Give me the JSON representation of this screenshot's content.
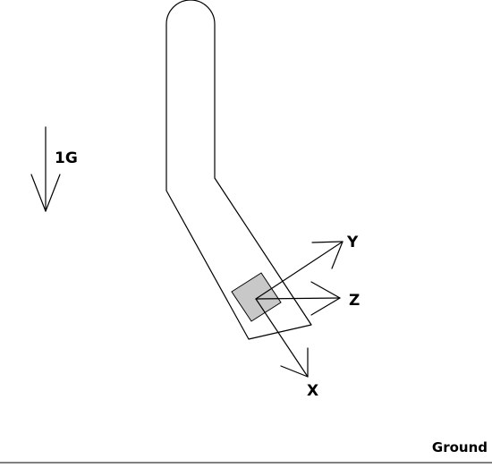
{
  "gravity": {
    "label": "1G"
  },
  "axes": {
    "x_label": "X",
    "y_label": "Y",
    "z_label": "Z"
  },
  "ground": {
    "label": "Ground"
  },
  "colors": {
    "sensor_fill": "#c8c8c8",
    "line": "#000000"
  }
}
